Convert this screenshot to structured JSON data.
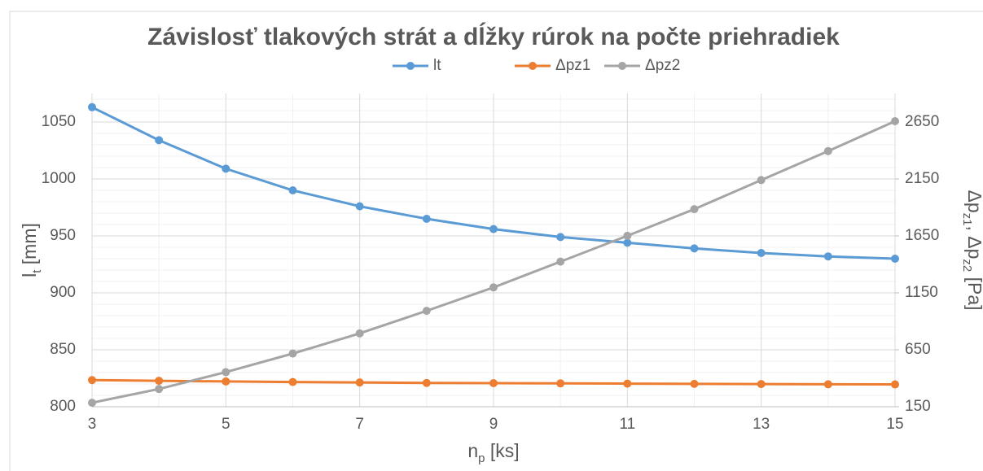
{
  "chart_data": {
    "type": "line",
    "title": "Závislosť tlakových strát a dĺžky rúrok na počte priehradiek",
    "x_label": [
      "n",
      "p",
      " [ks]"
    ],
    "y_label": [
      "l",
      "t",
      " [mm]"
    ],
    "y2_label": [
      "Δp",
      "z1",
      ", Δp",
      "z2",
      " [Pa]"
    ],
    "x": [
      3,
      4,
      5,
      6,
      7,
      8,
      9,
      10,
      11,
      12,
      13,
      14,
      15
    ],
    "xlim": [
      3,
      15
    ],
    "xticks": [
      3,
      5,
      7,
      9,
      11,
      13,
      15
    ],
    "ylim": [
      800,
      1075
    ],
    "yticks": [
      800,
      850,
      900,
      950,
      1000,
      1050
    ],
    "y2lim": [
      150,
      2900
    ],
    "y2ticks": [
      150,
      650,
      1150,
      1650,
      2150,
      2650
    ],
    "grid": true,
    "legend": "top",
    "series": [
      {
        "name": "lt",
        "color": "#5b9bd5",
        "values": [
          1063,
          1034,
          1009,
          990,
          976,
          965,
          956,
          949,
          944,
          939,
          935,
          932,
          930
        ]
      },
      {
        "name": "Δpz1",
        "color": "#ed7d31",
        "axis": "y2",
        "values": [
          384,
          378,
          372,
          367,
          363,
          359,
          357,
          355,
          353,
          351,
          349,
          347,
          346
        ]
      },
      {
        "name": "Δpz2",
        "color": "#a5a5a5",
        "axis": "y2",
        "values": [
          185,
          306,
          454,
          617,
          794,
          992,
          1198,
          1424,
          1651,
          1885,
          2140,
          2395,
          2657
        ]
      }
    ]
  }
}
